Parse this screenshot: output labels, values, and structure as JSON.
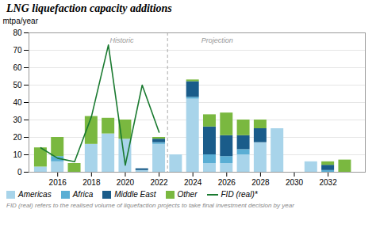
{
  "chart_data": {
    "type": "bar",
    "title": "LNG liquefaction capacity additions",
    "ylabel": "mtpa/year",
    "footnote": "FID (real) refers to the realised volume of liquefaction projects to take final investment decision by year",
    "stacked": true,
    "x": [
      2015,
      2016,
      2017,
      2018,
      2019,
      2020,
      2021,
      2022,
      2023,
      2024,
      2025,
      2026,
      2027,
      2028,
      2029,
      2030,
      2031,
      2032,
      2033
    ],
    "series": [
      {
        "name": "Americas",
        "color": "#a8d4ea",
        "values": [
          3,
          6,
          0,
          16,
          22,
          19,
          1,
          16,
          10,
          42,
          5,
          5,
          10,
          17,
          25,
          0,
          6,
          0,
          0
        ]
      },
      {
        "name": "Africa",
        "color": "#5aaed4",
        "values": [
          0,
          3,
          0,
          0,
          0,
          0,
          0,
          1,
          0,
          1,
          5,
          4,
          3,
          0,
          0,
          0,
          0,
          1,
          0
        ]
      },
      {
        "name": "Middle East",
        "color": "#1a5c8a",
        "values": [
          0,
          0,
          0,
          0,
          0,
          0,
          1,
          2,
          0,
          9,
          16,
          12,
          8,
          8,
          0,
          0,
          0,
          3,
          0
        ]
      },
      {
        "name": "Other",
        "color": "#7ab840",
        "values": [
          11,
          11,
          5,
          16,
          9,
          11,
          0,
          1,
          0,
          1,
          7,
          13,
          9,
          5,
          0,
          0,
          0,
          2,
          7
        ]
      },
      {
        "name": "FID (real)*",
        "type": "line",
        "color": "#1a7a30",
        "values": [
          14,
          8,
          6,
          32,
          73,
          4,
          50,
          23,
          null,
          null,
          null,
          null,
          null,
          null,
          null,
          null,
          null,
          null,
          null
        ]
      }
    ],
    "xlim": [
      2014.3,
      2034.2
    ],
    "xticks": [
      2016,
      2018,
      2020,
      2022,
      2024,
      2026,
      2028,
      2030,
      2032
    ],
    "ylim": [
      0,
      80
    ],
    "yticks": [
      0,
      10,
      20,
      30,
      40,
      50,
      60,
      70,
      80
    ],
    "grid": true,
    "legend": "bottom",
    "vlines": [
      2022.5
    ],
    "annotations": [
      {
        "text": "Historic",
        "x": 2020.5,
        "y": 77
      },
      {
        "text": "Projection",
        "x": 2024.5,
        "y": 77
      }
    ]
  }
}
